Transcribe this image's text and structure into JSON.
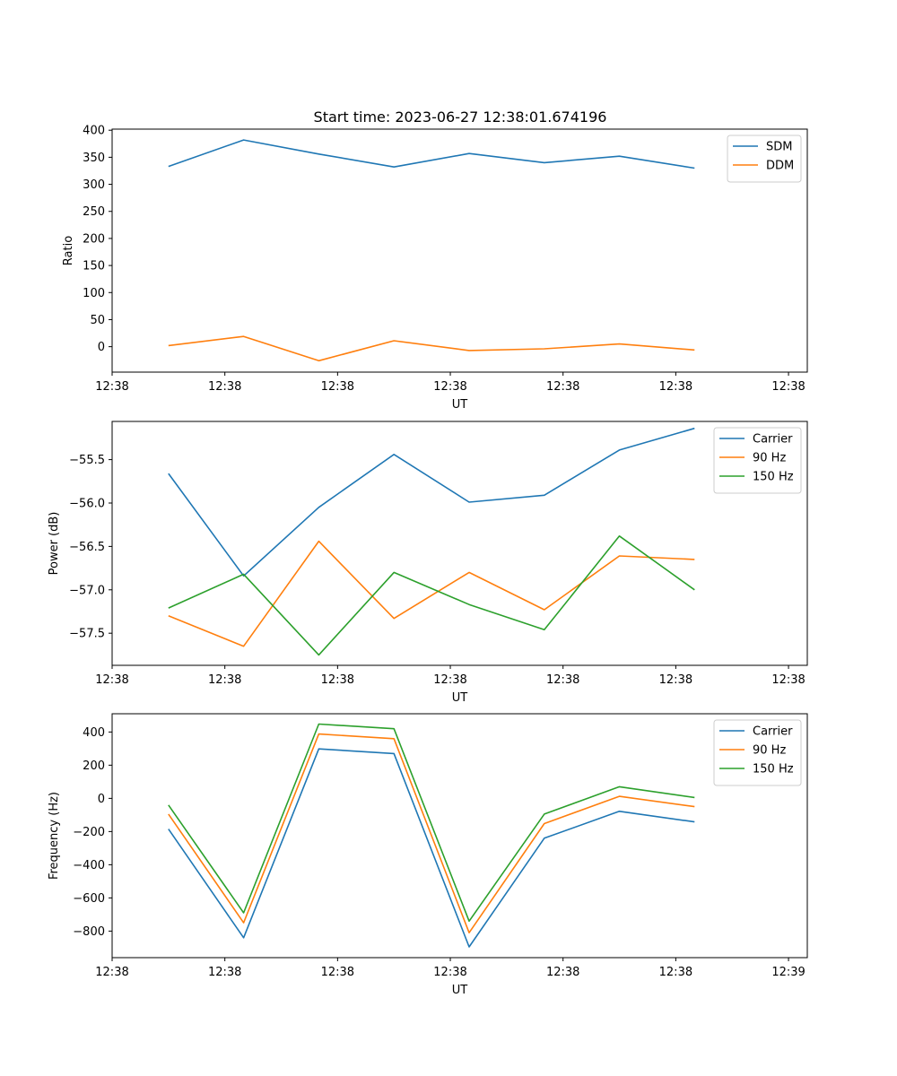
{
  "title": "Start time: 2023-06-27 12:38:01.674196",
  "colors": {
    "blue": "#1f77b4",
    "orange": "#ff7f0e",
    "green": "#2ca02c"
  },
  "chart_data": [
    {
      "type": "line",
      "title": "Start time: 2023-06-27 12:38:01.674196",
      "xlabel": "UT",
      "ylabel": "Ratio",
      "x": [
        0,
        1,
        2,
        3,
        4,
        5,
        6,
        7
      ],
      "xlim": [
        -0.75,
        8.5
      ],
      "x_ticks": [
        -0.75,
        0.75,
        2.25,
        3.75,
        5.25,
        6.75,
        8.25
      ],
      "x_tick_labels": [
        "12:38",
        "12:38",
        "12:38",
        "12:38",
        "12:38",
        "12:38",
        "12:38"
      ],
      "ylim": [
        -47,
        402
      ],
      "y_ticks": [
        0,
        50,
        100,
        150,
        200,
        250,
        300,
        350,
        400
      ],
      "y_tick_labels": [
        "0",
        "50",
        "100",
        "150",
        "200",
        "250",
        "300",
        "350",
        "400"
      ],
      "legend": "top-right",
      "grid": false,
      "series": [
        {
          "name": "SDM",
          "color": "#1f77b4",
          "values": [
            333,
            382,
            356,
            332,
            357,
            340,
            352,
            330
          ]
        },
        {
          "name": "DDM",
          "color": "#ff7f0e",
          "values": [
            2,
            19,
            -26,
            11,
            -7,
            -4,
            5,
            -6
          ]
        }
      ]
    },
    {
      "type": "line",
      "xlabel": "UT",
      "ylabel": "Power (dB)",
      "x": [
        0,
        1,
        2,
        3,
        4,
        5,
        6,
        7
      ],
      "xlim": [
        -0.75,
        8.5
      ],
      "x_ticks": [
        -0.75,
        0.75,
        2.25,
        3.75,
        5.25,
        6.75,
        8.25
      ],
      "x_tick_labels": [
        "12:38",
        "12:38",
        "12:38",
        "12:38",
        "12:38",
        "12:38",
        "12:38"
      ],
      "ylim": [
        -57.87,
        -55.06
      ],
      "y_ticks": [
        -57.5,
        -57.0,
        -56.5,
        -56.0,
        -55.5
      ],
      "y_tick_labels": [
        "−57.5",
        "−57.0",
        "−56.5",
        "−56.0",
        "−55.5"
      ],
      "legend": "top-right",
      "grid": false,
      "series": [
        {
          "name": "Carrier",
          "color": "#1f77b4",
          "values": [
            -55.66,
            -56.84,
            -56.05,
            -55.44,
            -55.99,
            -55.91,
            -55.39,
            -55.14
          ]
        },
        {
          "name": "90 Hz",
          "color": "#ff7f0e",
          "values": [
            -57.3,
            -57.65,
            -56.44,
            -57.33,
            -56.8,
            -57.23,
            -56.61,
            -56.65
          ]
        },
        {
          "name": "150 Hz",
          "color": "#2ca02c",
          "values": [
            -57.21,
            -56.82,
            -57.75,
            -56.8,
            -57.17,
            -57.46,
            -56.38,
            -57.0
          ]
        }
      ]
    },
    {
      "type": "line",
      "xlabel": "UT",
      "ylabel": "Frequency (Hz)",
      "x": [
        0,
        1,
        2,
        3,
        4,
        5,
        6,
        7
      ],
      "xlim": [
        -0.75,
        8.5
      ],
      "x_ticks": [
        -0.75,
        0.75,
        2.25,
        3.75,
        5.25,
        6.75,
        8.25
      ],
      "x_tick_labels": [
        "12:38",
        "12:38",
        "12:38",
        "12:38",
        "12:38",
        "12:38",
        "12:39"
      ],
      "ylim": [
        -960,
        510
      ],
      "y_ticks": [
        -800,
        -600,
        -400,
        -200,
        0,
        200,
        400
      ],
      "y_tick_labels": [
        "−800",
        "−600",
        "−400",
        "−200",
        "0",
        "200",
        "400"
      ],
      "legend": "top-right",
      "grid": false,
      "series": [
        {
          "name": "Carrier",
          "color": "#1f77b4",
          "values": [
            -185,
            -840,
            298,
            270,
            -895,
            -240,
            -78,
            -142
          ]
        },
        {
          "name": "90 Hz",
          "color": "#ff7f0e",
          "values": [
            -95,
            -750,
            388,
            360,
            -810,
            -152,
            12,
            -50
          ]
        },
        {
          "name": "150 Hz",
          "color": "#2ca02c",
          "values": [
            -40,
            -690,
            448,
            420,
            -740,
            -95,
            70,
            5
          ]
        }
      ]
    }
  ]
}
